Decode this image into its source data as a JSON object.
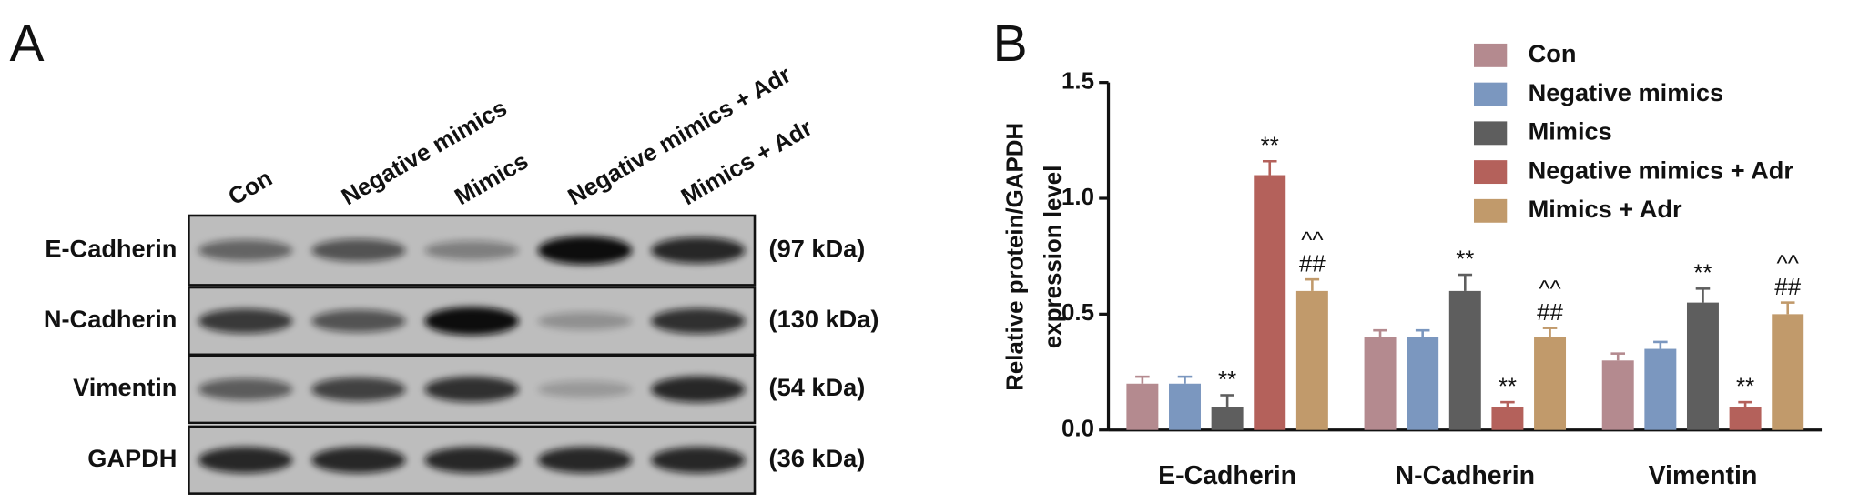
{
  "panel_a": {
    "label": "A",
    "lanes": [
      "Con",
      "Negative mimics",
      "Mimics",
      "Negative mimics + Adr",
      "Mimics + Adr"
    ],
    "rows": [
      {
        "protein": "E-Cadherin",
        "size": "(97 kDa)"
      },
      {
        "protein": "N-Cadherin",
        "size": "(130 kDa)"
      },
      {
        "protein": "Vimentin",
        "size": "(54 kDa)"
      },
      {
        "protein": "GAPDH",
        "size": "(36 kDa)"
      }
    ]
  },
  "chart_data": {
    "type": "bar",
    "panel_label": "B",
    "ylabel": [
      "Relative protein/GAPDH",
      "expression  level"
    ],
    "categories": [
      "E-Cadherin",
      "N-Cadherin",
      "Vimentin"
    ],
    "series": [
      {
        "name": "Con",
        "color": "#b48a8f",
        "values": [
          0.2,
          0.4,
          0.3
        ],
        "errors": [
          0.03,
          0.03,
          0.03
        ]
      },
      {
        "name": "Negative mimics",
        "color": "#7b97bf",
        "values": [
          0.2,
          0.4,
          0.35
        ],
        "errors": [
          0.03,
          0.03,
          0.03
        ]
      },
      {
        "name": "Mimics",
        "color": "#5e5e5e",
        "values": [
          0.1,
          0.6,
          0.55
        ],
        "errors": [
          0.05,
          0.07,
          0.06
        ]
      },
      {
        "name": "Negative mimics + Adr",
        "color": "#b4615b",
        "values": [
          1.1,
          0.1,
          0.1
        ],
        "errors": [
          0.06,
          0.02,
          0.02
        ]
      },
      {
        "name": "Mimics + Adr",
        "color": "#c19a6b",
        "values": [
          0.6,
          0.4,
          0.5
        ],
        "errors": [
          0.05,
          0.04,
          0.05
        ]
      }
    ],
    "ylim": [
      0,
      1.5
    ],
    "yticks": [
      {
        "value": 0,
        "label": "0.0"
      },
      {
        "value": 0.5,
        "label": "0.5"
      },
      {
        "value": 1,
        "label": "1.0"
      },
      {
        "value": 1.5,
        "label": "1.5"
      }
    ],
    "annotations": [
      {
        "category": 0,
        "series": 2,
        "text": [
          "**"
        ]
      },
      {
        "category": 0,
        "series": 3,
        "text": [
          "**"
        ]
      },
      {
        "category": 0,
        "series": 4,
        "text": [
          "^^",
          "##"
        ]
      },
      {
        "category": 1,
        "series": 2,
        "text": [
          "**"
        ]
      },
      {
        "category": 1,
        "series": 3,
        "text": [
          "**"
        ]
      },
      {
        "category": 1,
        "series": 4,
        "text": [
          "^^",
          "##"
        ]
      },
      {
        "category": 2,
        "series": 2,
        "text": [
          "**"
        ]
      },
      {
        "category": 2,
        "series": 3,
        "text": [
          "**"
        ]
      },
      {
        "category": 2,
        "series": 4,
        "text": [
          "^^",
          "##"
        ]
      }
    ]
  }
}
